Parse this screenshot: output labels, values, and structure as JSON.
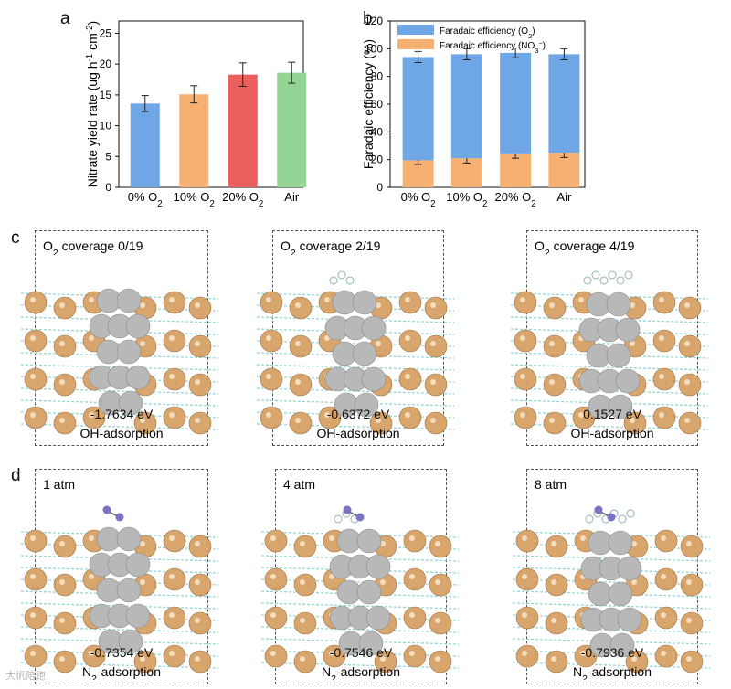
{
  "panels": {
    "a": "a",
    "b": "b",
    "c": "c",
    "d": "d"
  },
  "chart_data": [
    {
      "id": "a",
      "type": "bar",
      "categories": [
        "0% O2",
        "10% O2",
        "20% O2",
        "Air"
      ],
      "values": [
        13.6,
        15.1,
        18.3,
        18.6
      ],
      "errors": [
        1.3,
        1.4,
        1.9,
        1.7
      ],
      "colors": [
        "#6fa6e6",
        "#f6b172",
        "#eb5e5e",
        "#94d596"
      ],
      "ylabel": "Nitrate yield rate (ug h⁻¹ cm⁻²)",
      "ylim": [
        0,
        27
      ],
      "yticks": [
        0,
        5,
        10,
        15,
        20,
        25
      ],
      "xlabel": "",
      "title": ""
    },
    {
      "id": "b",
      "type": "bar",
      "stacked": true,
      "categories": [
        "0% O2",
        "10% O2",
        "20% O2",
        "Air"
      ],
      "series": [
        {
          "name": "Faradaic efficiency (NO3⁻)",
          "color": "#f6b172",
          "values": [
            19.5,
            21.0,
            24.5,
            25.0
          ],
          "errors": [
            3.0,
            3.5,
            3.5,
            3.5
          ]
        },
        {
          "name": "Faradaic efficiency (O2)",
          "color": "#6fa6e6",
          "values": [
            74.5,
            75.0,
            72.5,
            71.0
          ],
          "errors": [
            4.0,
            4.0,
            3.5,
            4.0
          ]
        }
      ],
      "legend": [
        "Faradaic efficiency (O2)",
        "Faradaic efficiency (NO3⁻)"
      ],
      "ylabel": "Faradaic efficiency (%)",
      "ylim": [
        0,
        120
      ],
      "yticks": [
        0,
        20,
        40,
        60,
        80,
        100,
        120
      ],
      "legend_position": "top-left",
      "title": ""
    }
  ],
  "panel_c": [
    {
      "title": "O2 coverage 0/19",
      "energy": "-1.7634 eV",
      "adsorption": "OH-adsorption"
    },
    {
      "title": "O2 coverage 2/19",
      "energy": "-0.6372 eV",
      "adsorption": "OH-adsorption"
    },
    {
      "title": "O2 coverage 4/19",
      "energy": "0.1527 eV",
      "adsorption": "OH-adsorption"
    }
  ],
  "panel_d": [
    {
      "title": "1 atm",
      "energy": "-0.7354 eV",
      "adsorption": "N2-adsorption"
    },
    {
      "title": "4 atm",
      "energy": "-0.7546 eV",
      "adsorption": "N2-adsorption"
    },
    {
      "title": "8 atm",
      "energy": "-0.7936 eV",
      "adsorption": "N2-adsorption"
    }
  ],
  "watermark": "大帆陪跑",
  "colors": {
    "cu_atom": "#d8a56c",
    "ag_atom": "#b8b8b8",
    "bond": "#8fd3d3",
    "n2_atom": "#7b72c4"
  }
}
